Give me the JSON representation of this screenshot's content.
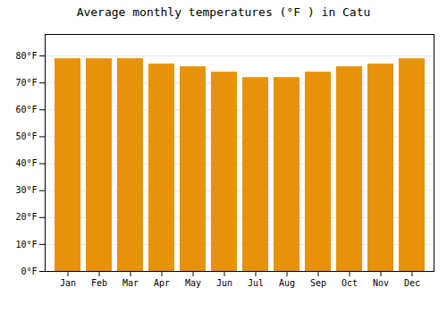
{
  "chart_data": {
    "type": "bar",
    "title": "Average monthly temperatures (°F ) in Catu",
    "categories": [
      "Jan",
      "Feb",
      "Mar",
      "Apr",
      "May",
      "Jun",
      "Jul",
      "Aug",
      "Sep",
      "Oct",
      "Nov",
      "Dec"
    ],
    "values": [
      79,
      79,
      79,
      77,
      76,
      74,
      72,
      72,
      74,
      76,
      77,
      79
    ],
    "color": "#E8920A",
    "ylim": [
      0,
      88
    ],
    "yticks": [
      {
        "value": 0,
        "label": "0°F"
      },
      {
        "value": 10,
        "label": "10°F"
      },
      {
        "value": 20,
        "label": "20°F"
      },
      {
        "value": 30,
        "label": "30°F"
      },
      {
        "value": 40,
        "label": "40°F"
      },
      {
        "value": 50,
        "label": "50°F"
      },
      {
        "value": 60,
        "label": "60°F"
      },
      {
        "value": 70,
        "label": "70°F"
      },
      {
        "value": 80,
        "label": "80°F"
      }
    ],
    "grid": true
  }
}
